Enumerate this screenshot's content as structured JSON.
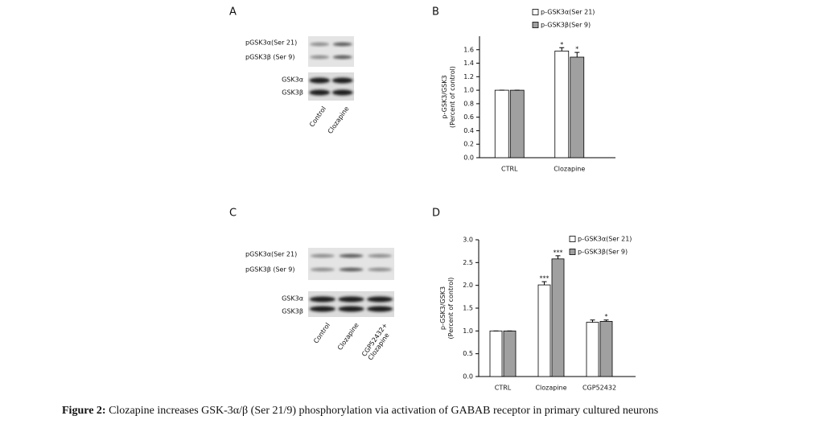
{
  "blots": [
    {
      "label": "A",
      "bands": [
        "pGSK3α(Ser 21)",
        "pGSK3β (Ser 9)"
      ],
      "totals": [
        "GSK3α",
        "GSK3β"
      ],
      "lanes": [
        [
          "Control"
        ],
        [
          "Clozapine"
        ]
      ]
    },
    {
      "label": "C",
      "bands": [
        "pGSK3α(Ser 21)",
        "pGSK3β (Ser 9)"
      ],
      "totals": [
        "GSK3α",
        "GSK3β"
      ],
      "lanes": [
        [
          "Control"
        ],
        [
          "Clozapine"
        ],
        [
          "CGP52432+",
          "Clozapine"
        ]
      ]
    }
  ],
  "chart_data": [
    {
      "type": "bar",
      "title": "B",
      "y_label": [
        "p-GSK3/GSK3",
        "(Percent of control)"
      ],
      "categories": [
        "CTRL",
        "Clozapine"
      ],
      "series": [
        {
          "name": "p-GSK3α(Ser 21)",
          "color": "#ffffff",
          "values": [
            1.0,
            1.58
          ],
          "errors": [
            0,
            0.05
          ],
          "annotations": [
            null,
            "*"
          ]
        },
        {
          "name": "p-GSK3β(Ser 9)",
          "color": "#a0a0a0",
          "values": [
            1.0,
            1.49
          ],
          "errors": [
            0,
            0.07
          ],
          "annotations": [
            null,
            "*"
          ]
        }
      ],
      "ylim": [
        0,
        1.8
      ],
      "yticks": [
        {
          "value": 0,
          "label": "0.0"
        },
        0.2,
        0.4,
        0.6,
        0.8,
        {
          "value": 1,
          "label": "1.0"
        },
        1.2,
        1.4,
        1.6
      ]
    },
    {
      "type": "bar",
      "title": "D",
      "y_label": [
        "p-GSK3/GSK3",
        "(Percent of control)"
      ],
      "categories": [
        "CTRL",
        "Clozapine",
        "CGP52432"
      ],
      "series": [
        {
          "name": "p-GSK3α(Ser 21)",
          "color": "#ffffff",
          "values": [
            1.0,
            2.01,
            1.19
          ],
          "errors": [
            0,
            0.07,
            0.05
          ],
          "annotations": [
            null,
            "***",
            null
          ]
        },
        {
          "name": "p-GSK3β(Ser 9)",
          "color": "#a0a0a0",
          "values": [
            1.0,
            2.58,
            1.21
          ],
          "errors": [
            0,
            0.07,
            0.03
          ],
          "annotations": [
            null,
            "***",
            "*"
          ]
        }
      ],
      "ylim": [
        0,
        3.0
      ],
      "yticks": [
        {
          "value": 0,
          "label": "0.0"
        },
        0.5,
        {
          "value": 1,
          "label": "1.0"
        },
        1.5,
        {
          "value": 2,
          "label": "2.0"
        },
        2.5,
        {
          "value": 3,
          "label": "3.0"
        }
      ]
    }
  ],
  "caption": {
    "label": "Figure 2:",
    "text": " Clozapine increases GSK-3α/β (Ser 21/9) phosphorylation via activation of GABAB receptor in primary cultured neurons"
  }
}
